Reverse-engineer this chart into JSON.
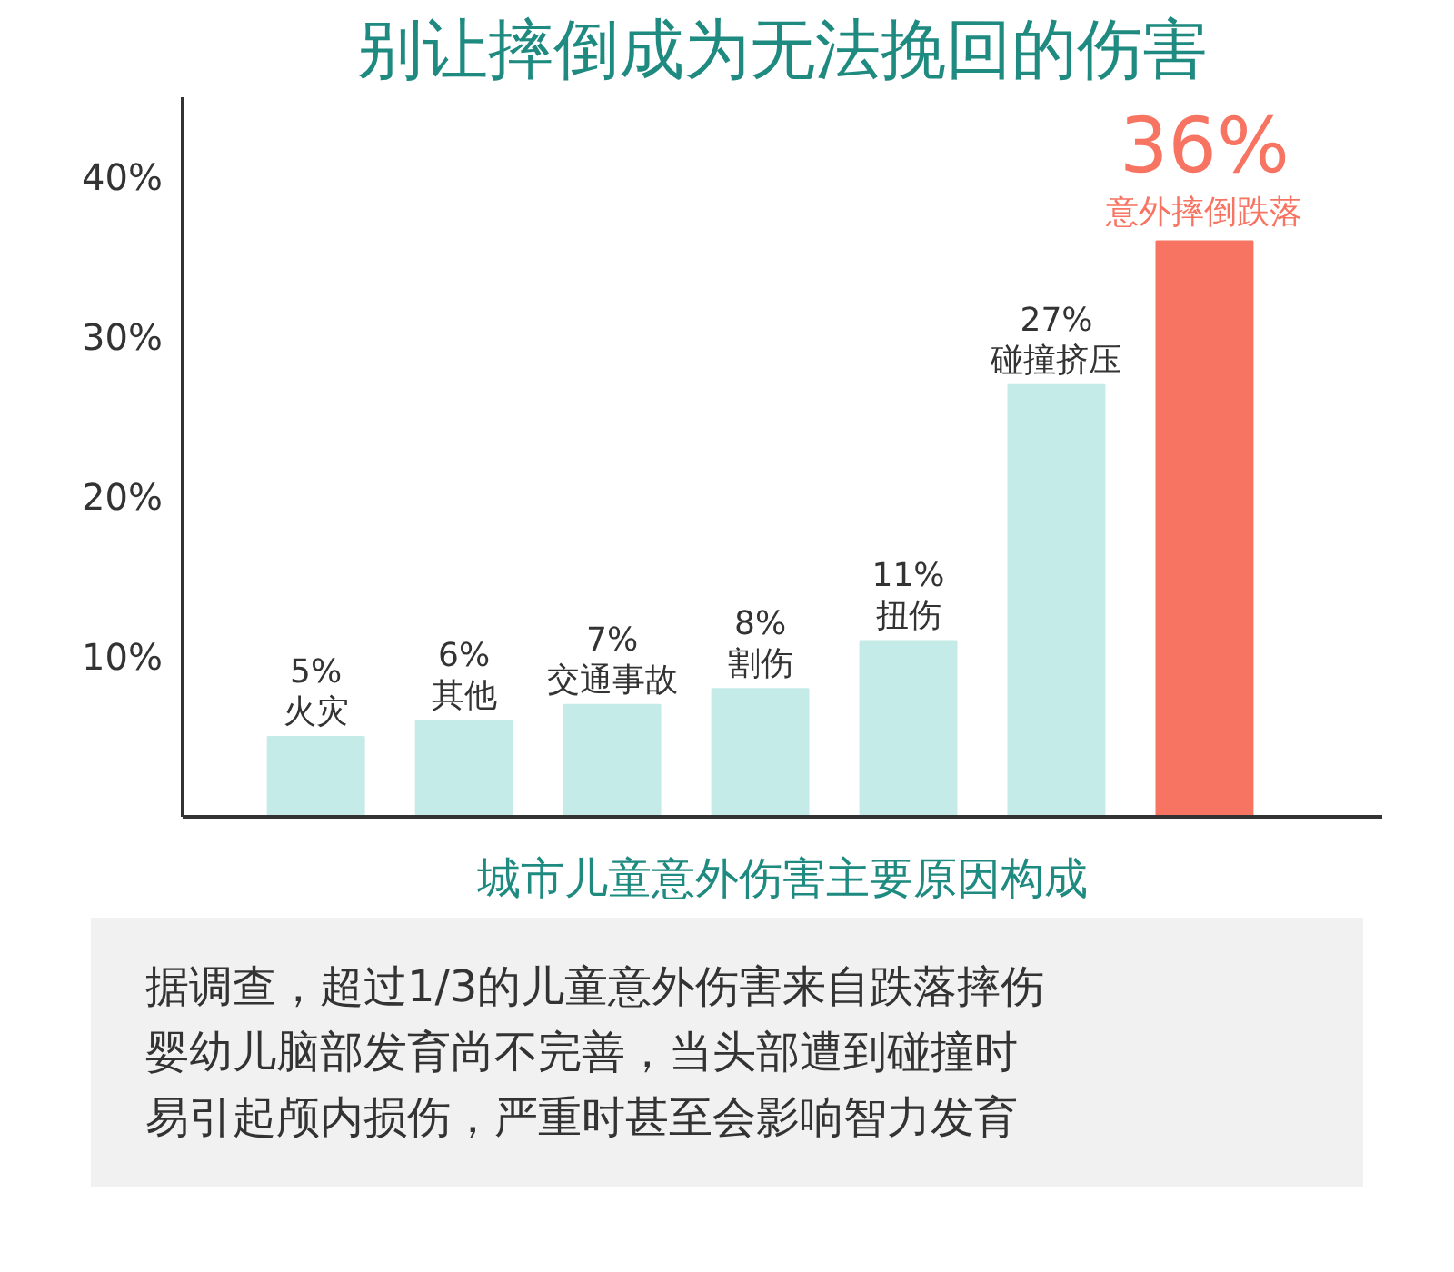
{
  "chart_data": {
    "type": "bar",
    "title": "别让摔倒成为无法挽回的伤害",
    "xlabel": "城市儿童意外伤害主要原因构成",
    "categories": [
      "火灾",
      "其他",
      "交通事故",
      "割伤",
      "扭伤",
      "碰撞挤压",
      "意外摔倒跌落"
    ],
    "values": [
      5,
      6,
      7,
      8,
      11,
      27,
      36
    ],
    "value_labels": [
      "5%",
      "6%",
      "7%",
      "8%",
      "11%",
      "27%",
      "36%"
    ],
    "colors": [
      "#c4ebe8",
      "#c4ebe8",
      "#c4ebe8",
      "#c4ebe8",
      "#c4ebe8",
      "#c4ebe8",
      "#f77462"
    ],
    "ylim": [
      0,
      45
    ],
    "yticks": [
      {
        "value": 10,
        "label": "10%"
      },
      {
        "value": 20,
        "label": "20%"
      },
      {
        "value": 30,
        "label": "30%"
      },
      {
        "value": 40,
        "label": "40%"
      }
    ],
    "tick_labels": "y",
    "grid": false,
    "annotations": [
      "据调查，超过1/3的儿童意外伤害来自跌落摔伤",
      "婴幼儿脑部发育尚不完善，当头部遭到碰撞时",
      "易引起颅内损伤，严重时甚至会影响智力发育"
    ]
  }
}
